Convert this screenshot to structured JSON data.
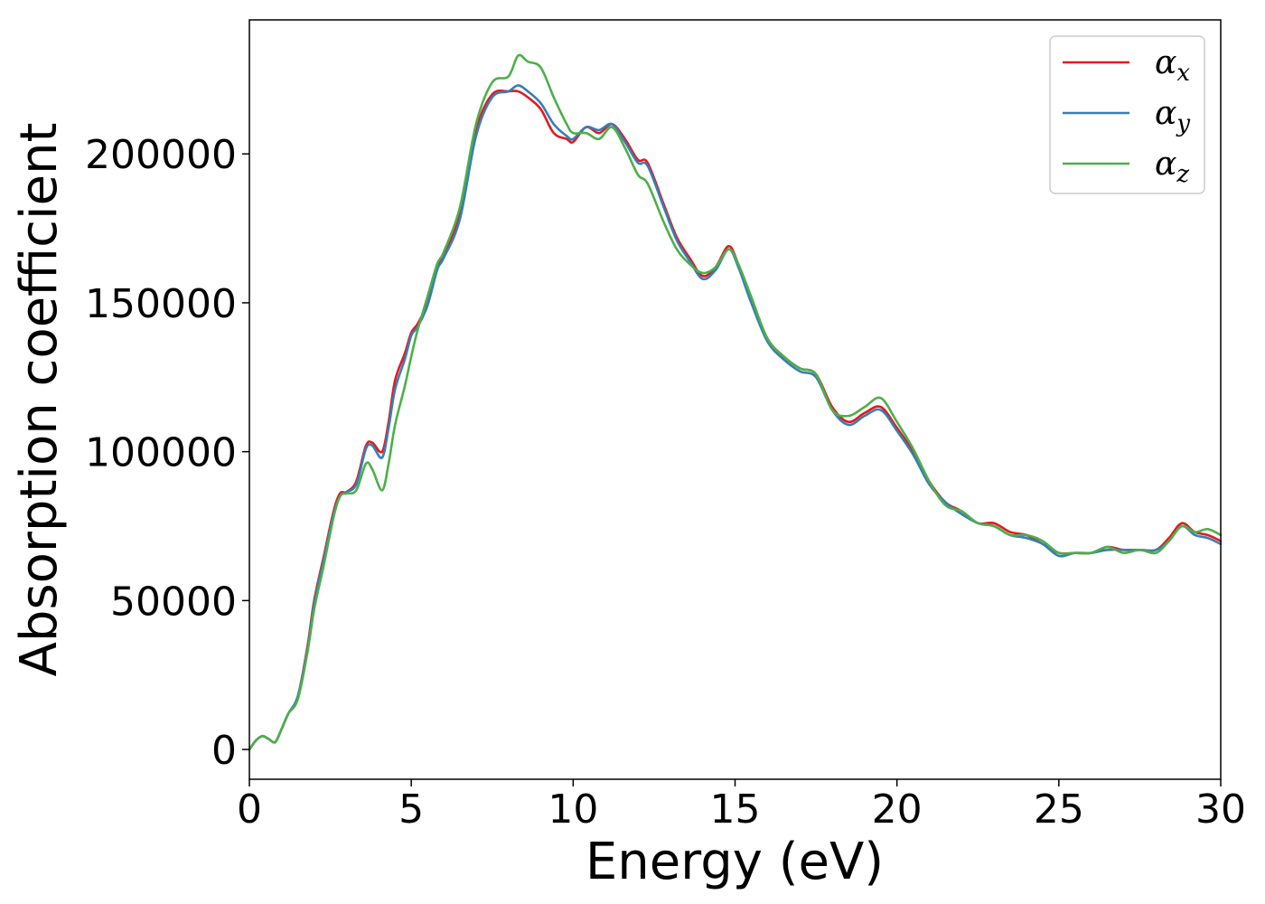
{
  "chart_data": {
    "type": "line",
    "title": "",
    "xlabel": "Energy (eV)",
    "ylabel": "Absorption coefficient",
    "xlim": [
      0,
      30
    ],
    "ylim": [
      -10000,
      245000
    ],
    "xticks": [
      0,
      5,
      10,
      15,
      20,
      25,
      30
    ],
    "xtick_labels": [
      "0",
      "5",
      "10",
      "15",
      "20",
      "25",
      "30"
    ],
    "yticks": [
      0,
      50000,
      100000,
      150000,
      200000
    ],
    "ytick_labels": [
      "0",
      "50000",
      "100000",
      "150000",
      "200000"
    ],
    "grid": false,
    "legend_position": "top-right",
    "series": [
      {
        "name": "α_x",
        "legend_symbol": "α",
        "legend_sub": "x",
        "color": "#e41a1c",
        "x": [
          0,
          0.2,
          0.4,
          0.6,
          0.8,
          1.0,
          1.2,
          1.5,
          1.8,
          2.0,
          2.3,
          2.6,
          2.8,
          3.0,
          3.3,
          3.6,
          3.8,
          4.1,
          4.3,
          4.5,
          4.8,
          5.0,
          5.2,
          5.5,
          5.8,
          6.0,
          6.5,
          7.0,
          7.5,
          8.0,
          8.3,
          8.6,
          9.0,
          9.4,
          9.8,
          10.0,
          10.4,
          10.8,
          11.2,
          11.6,
          12.0,
          12.3,
          12.8,
          13.2,
          13.6,
          14.0,
          14.4,
          14.8,
          15.1,
          15.5,
          16.0,
          16.5,
          17.0,
          17.5,
          18.0,
          18.5,
          19.0,
          19.5,
          20.0,
          20.5,
          21.0,
          21.5,
          22.0,
          22.5,
          23.0,
          23.5,
          24.0,
          24.5,
          25.0,
          25.5,
          26.0,
          26.5,
          27.0,
          27.5,
          28.0,
          28.4,
          28.8,
          29.2,
          29.6,
          30.0
        ],
        "y": [
          0,
          3000,
          4500,
          3500,
          2500,
          7000,
          12000,
          18000,
          35000,
          50000,
          65000,
          80000,
          86000,
          86500,
          90000,
          102000,
          103000,
          100000,
          110000,
          124000,
          133000,
          140000,
          143000,
          150000,
          162000,
          166000,
          180000,
          208000,
          220000,
          221000,
          221000,
          219000,
          215000,
          207000,
          205000,
          204000,
          209000,
          207000,
          210000,
          205000,
          198000,
          197000,
          183000,
          172000,
          165000,
          159000,
          162000,
          169000,
          163000,
          151000,
          138000,
          132000,
          128000,
          126000,
          115000,
          110000,
          113000,
          115000,
          108000,
          100000,
          90000,
          83000,
          80000,
          76000,
          76000,
          73000,
          72000,
          69000,
          66000,
          66000,
          66000,
          68000,
          67000,
          67000,
          67000,
          71000,
          76000,
          73000,
          72000,
          70000
        ]
      },
      {
        "name": "α_y",
        "legend_symbol": "α",
        "legend_sub": "y",
        "color": "#377eb8",
        "x": [
          0,
          0.2,
          0.4,
          0.6,
          0.8,
          1.0,
          1.2,
          1.5,
          1.8,
          2.0,
          2.3,
          2.6,
          2.8,
          3.0,
          3.3,
          3.6,
          3.8,
          4.1,
          4.3,
          4.5,
          4.8,
          5.0,
          5.2,
          5.5,
          5.8,
          6.0,
          6.5,
          7.0,
          7.5,
          8.0,
          8.3,
          8.6,
          9.0,
          9.4,
          9.8,
          10.0,
          10.4,
          10.8,
          11.2,
          11.6,
          12.0,
          12.3,
          12.8,
          13.2,
          13.6,
          14.0,
          14.4,
          14.8,
          15.1,
          15.5,
          16.0,
          16.5,
          17.0,
          17.5,
          18.0,
          18.5,
          19.0,
          19.5,
          20.0,
          20.5,
          21.0,
          21.5,
          22.0,
          22.5,
          23.0,
          23.5,
          24.0,
          24.5,
          25.0,
          25.5,
          26.0,
          26.5,
          27.0,
          27.5,
          28.0,
          28.4,
          28.8,
          29.2,
          29.6,
          30.0
        ],
        "y": [
          0,
          3000,
          4500,
          3500,
          2500,
          7000,
          12000,
          18000,
          34000,
          49000,
          64000,
          79000,
          85000,
          86500,
          89000,
          101000,
          102000,
          98000,
          108000,
          121000,
          131000,
          139000,
          142000,
          149000,
          161000,
          165000,
          178000,
          206000,
          219000,
          221000,
          223000,
          221000,
          217000,
          210000,
          206000,
          205000,
          209000,
          208000,
          210000,
          204000,
          197000,
          196000,
          182000,
          171000,
          164000,
          158000,
          161000,
          168000,
          162000,
          150000,
          137000,
          131000,
          127000,
          125000,
          114000,
          109000,
          112000,
          114000,
          107000,
          99000,
          89000,
          83000,
          79000,
          76000,
          75000,
          72000,
          71000,
          69000,
          65000,
          66000,
          66000,
          67000,
          67000,
          67000,
          67000,
          70000,
          75000,
          72000,
          71000,
          69000
        ]
      },
      {
        "name": "α_z",
        "legend_symbol": "α",
        "legend_sub": "z",
        "color": "#4daf4a",
        "x": [
          0,
          0.2,
          0.4,
          0.6,
          0.8,
          1.0,
          1.2,
          1.5,
          1.8,
          2.0,
          2.3,
          2.6,
          2.8,
          3.0,
          3.3,
          3.6,
          3.8,
          4.1,
          4.3,
          4.5,
          4.8,
          5.0,
          5.2,
          5.5,
          5.8,
          6.0,
          6.5,
          7.0,
          7.5,
          8.0,
          8.3,
          8.6,
          9.0,
          9.4,
          9.8,
          10.0,
          10.4,
          10.8,
          11.2,
          11.6,
          12.0,
          12.3,
          12.8,
          13.2,
          13.6,
          14.0,
          14.4,
          14.8,
          15.1,
          15.5,
          16.0,
          16.5,
          17.0,
          17.5,
          18.0,
          18.5,
          19.0,
          19.5,
          20.0,
          20.5,
          21.0,
          21.5,
          22.0,
          22.5,
          23.0,
          23.5,
          24.0,
          24.5,
          25.0,
          25.5,
          26.0,
          26.5,
          27.0,
          27.5,
          28.0,
          28.4,
          28.8,
          29.2,
          29.6,
          30.0
        ],
        "y": [
          0,
          3000,
          4500,
          3500,
          2500,
          7000,
          12000,
          17000,
          33000,
          47000,
          62000,
          78000,
          85000,
          86000,
          87000,
          96000,
          94000,
          87000,
          96000,
          109000,
          122000,
          132000,
          141000,
          152000,
          163000,
          167000,
          182000,
          210000,
          224000,
          226000,
          233000,
          231000,
          229000,
          219000,
          210000,
          207000,
          207000,
          205000,
          209000,
          202000,
          193000,
          190000,
          177000,
          168000,
          163000,
          160000,
          162000,
          168000,
          163000,
          152000,
          138000,
          132000,
          128000,
          126000,
          114000,
          112000,
          115000,
          118000,
          110000,
          101000,
          90000,
          82000,
          80000,
          76000,
          75000,
          72000,
          72000,
          70000,
          66000,
          66000,
          66000,
          68000,
          66000,
          67000,
          66000,
          70000,
          75000,
          73000,
          74000,
          72000
        ]
      }
    ]
  }
}
